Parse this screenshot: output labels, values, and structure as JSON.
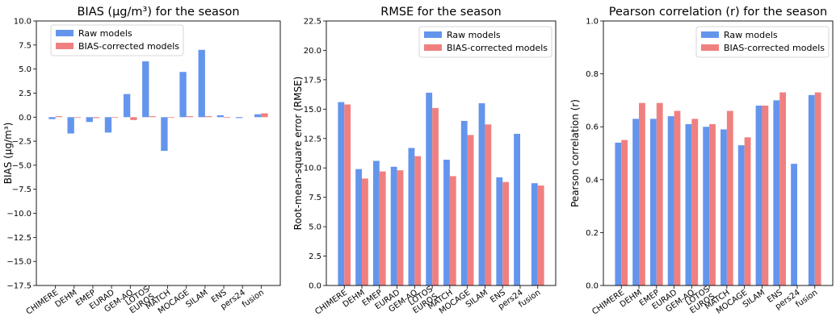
{
  "colors": {
    "raw": "#6495ED",
    "corrected": "#F08080"
  },
  "chart_data": [
    {
      "type": "bar",
      "title": "BIAS (μg/m³) for the season",
      "ylabel": "BIAS (μg/m³)",
      "xlabel": "",
      "categories": [
        "CHIMERE",
        "DEHM",
        "EMEP",
        "EURAD",
        "GEM-AQ",
        "LOTOS\nEUROS",
        "MATCH",
        "MOCAGE",
        "SILAM",
        "ENS",
        "pers24",
        "fusion"
      ],
      "series": [
        {
          "name": "Raw models",
          "values": [
            -0.2,
            -1.7,
            -0.5,
            -1.6,
            2.4,
            5.8,
            -3.5,
            4.7,
            7.0,
            0.2,
            -0.1,
            0.3
          ]
        },
        {
          "name": "BIAS-corrected models",
          "values": [
            0.1,
            0.0,
            -0.1,
            0.0,
            -0.3,
            0.1,
            0.0,
            0.1,
            0.1,
            0.0,
            null,
            0.4
          ]
        }
      ],
      "ylim": [
        -17.5,
        10.0
      ],
      "yticks": [
        "10.0",
        "7.5",
        "5.0",
        "2.5",
        "0.0",
        "−2.5",
        "−5.0",
        "−7.5",
        "−10.0",
        "−12.5",
        "−15.0",
        "−17.5"
      ],
      "legend_position": "top-left",
      "grid": false
    },
    {
      "type": "bar",
      "title": "RMSE for the season",
      "ylabel": "Root-mean-square error (RMSE)",
      "xlabel": "",
      "categories": [
        "CHIMERE",
        "DEHM",
        "EMEP",
        "EURAD",
        "GEM-AQ",
        "LOTOS\nEUROS",
        "MATCH",
        "MOCAGE",
        "SILAM",
        "ENS",
        "pers24",
        "fusion"
      ],
      "series": [
        {
          "name": "Raw models",
          "values": [
            15.6,
            9.9,
            10.6,
            10.1,
            11.7,
            16.4,
            10.7,
            14.0,
            15.5,
            9.2,
            12.9,
            8.7
          ]
        },
        {
          "name": "BIAS-corrected models",
          "values": [
            15.4,
            9.1,
            9.7,
            9.8,
            11.0,
            15.1,
            9.3,
            12.8,
            13.7,
            8.8,
            null,
            8.5
          ]
        }
      ],
      "ylim": [
        0.0,
        22.5
      ],
      "yticks": [
        "22.5",
        "20.0",
        "17.5",
        "15.0",
        "12.5",
        "10.0",
        "7.5",
        "5.0",
        "2.5",
        "0.0"
      ],
      "legend_position": "top-right",
      "grid": false
    },
    {
      "type": "bar",
      "title": "Pearson correlation (r) for the season",
      "ylabel": "Pearson correlation (r)",
      "xlabel": "",
      "categories": [
        "CHIMERE",
        "DEHM",
        "EMEP",
        "EURAD",
        "GEM-AQ",
        "LOTOS\nEUROS",
        "MATCH",
        "MOCAGE",
        "SILAM",
        "ENS",
        "pers24",
        "fusion"
      ],
      "series": [
        {
          "name": "Raw models",
          "values": [
            0.54,
            0.63,
            0.63,
            0.64,
            0.61,
            0.6,
            0.59,
            0.53,
            0.68,
            0.7,
            0.46,
            0.72
          ]
        },
        {
          "name": "BIAS-corrected models",
          "values": [
            0.55,
            0.69,
            0.69,
            0.66,
            0.63,
            0.61,
            0.66,
            0.56,
            0.68,
            0.73,
            null,
            0.73
          ]
        }
      ],
      "ylim": [
        0.0,
        1.0
      ],
      "yticks": [
        "1.0",
        "0.8",
        "0.6",
        "0.4",
        "0.2",
        "0.0"
      ],
      "legend_position": "top-right",
      "grid": false
    }
  ]
}
